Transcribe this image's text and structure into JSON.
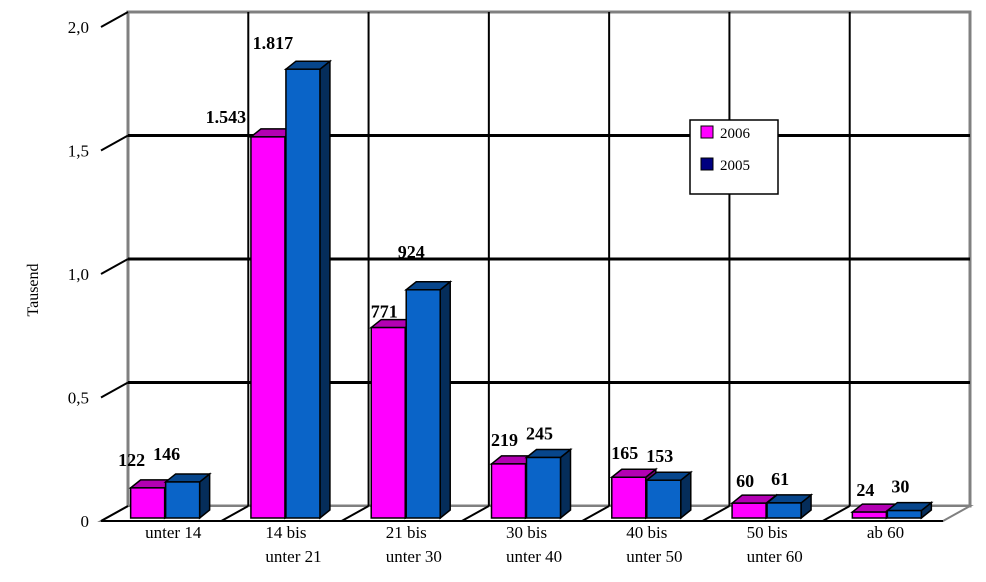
{
  "chart_data": {
    "type": "bar",
    "categories": [
      [
        "unter 14"
      ],
      [
        "14 bis",
        "unter 21"
      ],
      [
        "21 bis",
        "unter 30"
      ],
      [
        "30 bis",
        "unter 40"
      ],
      [
        "40 bis",
        "unter 50"
      ],
      [
        "50 bis",
        "unter 60"
      ],
      [
        "ab 60"
      ]
    ],
    "series": [
      {
        "name": "2006",
        "color": "#ff00ff",
        "values": [
          0.122,
          1.543,
          0.771,
          0.219,
          0.165,
          0.06,
          0.024
        ],
        "labels": [
          "122",
          "1.543",
          "771",
          "219",
          "165",
          "60",
          "24"
        ]
      },
      {
        "name": "2005",
        "color": "#0a64c8",
        "legend_color": "#000080",
        "values": [
          0.146,
          1.817,
          0.924,
          0.245,
          0.153,
          0.061,
          0.03
        ],
        "labels": [
          "146",
          "1.817",
          "924",
          "245",
          "153",
          "61",
          "30"
        ]
      }
    ],
    "ylabel": "Tausend",
    "xlabel": "",
    "title": "",
    "ylim": [
      0,
      2.0
    ],
    "yticks": [
      0,
      0.5,
      1.0,
      1.5,
      2.0
    ],
    "ytick_labels": [
      "0",
      "0,5",
      "1,0",
      "1,5",
      "2,0"
    ],
    "grid": true,
    "legend_position": "right"
  }
}
